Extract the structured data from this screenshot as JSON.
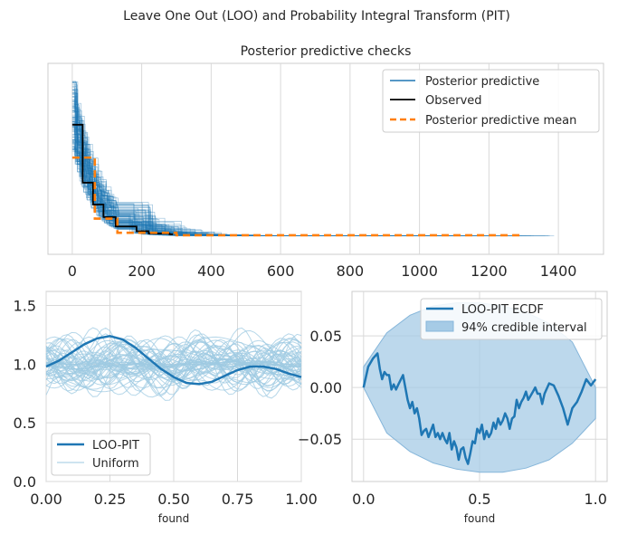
{
  "suptitle": "Leave One Out (LOO) and Probability Integral Transform (PIT)",
  "colors": {
    "blue": "#1f77b4",
    "orange": "#ff7f0e",
    "light_blue": "#9ecae1",
    "band": "#a6cbe6",
    "grid": "#d9d9d9"
  },
  "chart_data": [
    {
      "type": "line",
      "title": "Posterior predictive checks",
      "xlabel": "",
      "ylabel": "",
      "xlim": [
        -70,
        1530
      ],
      "xticks": [
        0,
        200,
        400,
        600,
        800,
        1000,
        1200,
        1400
      ],
      "xtick_labels": [
        "0",
        "200",
        "400",
        "600",
        "800",
        "1000",
        "1200",
        "1400"
      ],
      "legend": [
        "Posterior predictive",
        "Observed",
        "Posterior predictive mean"
      ],
      "legend_loc": "upper-right",
      "series": [
        {
          "name": "Observed",
          "type": "step",
          "x": [
            0,
            30,
            60,
            90,
            125,
            185,
            220,
            280
          ],
          "y": [
            0.77,
            0.4,
            0.26,
            0.18,
            0.12,
            0.09,
            0.075,
            0.07
          ]
        },
        {
          "name": "Posterior predictive mean",
          "type": "step",
          "x": [
            0,
            65,
            130,
            300,
            1300
          ],
          "y": [
            0.56,
            0.17,
            0.08,
            0.064,
            0.064
          ]
        }
      ]
    },
    {
      "type": "line",
      "title": "",
      "xlabel": "found",
      "ylabel": "",
      "xlim": [
        0,
        1
      ],
      "ylim": [
        0,
        1.62
      ],
      "xticks": [
        0,
        0.25,
        0.5,
        0.75,
        1.0
      ],
      "xtick_labels": [
        "0.00",
        "0.25",
        "0.50",
        "0.75",
        "1.00"
      ],
      "yticks": [
        0,
        0.5,
        1.0,
        1.5
      ],
      "ytick_labels": [
        "0.0",
        "0.5",
        "1.0",
        "1.5"
      ],
      "legend": [
        "LOO-PIT",
        "Uniform"
      ],
      "legend_loc": "lower-left",
      "series": [
        {
          "name": "LOO-PIT",
          "x": [
            0,
            0.05,
            0.1,
            0.15,
            0.2,
            0.25,
            0.3,
            0.35,
            0.4,
            0.45,
            0.5,
            0.55,
            0.6,
            0.65,
            0.7,
            0.75,
            0.8,
            0.85,
            0.9,
            0.95,
            1.0
          ],
          "y": [
            0.98,
            1.03,
            1.1,
            1.17,
            1.22,
            1.24,
            1.21,
            1.14,
            1.05,
            0.96,
            0.89,
            0.84,
            0.83,
            0.85,
            0.9,
            0.95,
            0.98,
            0.98,
            0.96,
            0.92,
            0.89
          ]
        }
      ]
    },
    {
      "type": "line",
      "title": "",
      "xlabel": "found",
      "ylabel": "",
      "xlim": [
        -0.05,
        1.05
      ],
      "ylim": [
        -0.091,
        0.093
      ],
      "xticks": [
        0,
        0.5,
        1.0
      ],
      "xtick_labels": [
        "0.0",
        "0.5",
        "1.0"
      ],
      "yticks": [
        -0.05,
        0,
        0.05
      ],
      "ytick_labels": [
        "−0.05",
        "0.00",
        "0.05"
      ],
      "legend": [
        "LOO-PIT ECDF",
        "94% credible interval"
      ],
      "legend_loc": "upper-right",
      "series": [
        {
          "name": "LOO-PIT ECDF",
          "x": [
            0,
            0.02,
            0.04,
            0.06,
            0.07,
            0.08,
            0.09,
            0.1,
            0.11,
            0.12,
            0.13,
            0.14,
            0.15,
            0.17,
            0.19,
            0.2,
            0.21,
            0.22,
            0.23,
            0.24,
            0.25,
            0.26,
            0.27,
            0.28,
            0.3,
            0.31,
            0.32,
            0.33,
            0.34,
            0.35,
            0.36,
            0.37,
            0.38,
            0.39,
            0.4,
            0.41,
            0.42,
            0.43,
            0.44,
            0.45,
            0.46,
            0.47,
            0.48,
            0.49,
            0.5,
            0.51,
            0.52,
            0.53,
            0.54,
            0.55,
            0.56,
            0.57,
            0.58,
            0.59,
            0.6,
            0.61,
            0.62,
            0.63,
            0.64,
            0.65,
            0.66,
            0.67,
            0.68,
            0.69,
            0.7,
            0.71,
            0.72,
            0.73,
            0.74,
            0.75,
            0.76,
            0.77,
            0.78,
            0.8,
            0.82,
            0.84,
            0.86,
            0.88,
            0.9,
            0.92,
            0.94,
            0.96,
            0.98,
            1.0
          ],
          "y": [
            0.0,
            0.02,
            0.028,
            0.033,
            0.018,
            0.008,
            0.015,
            0.012,
            0.012,
            -0.002,
            0.003,
            -0.002,
            0.003,
            0.012,
            -0.012,
            -0.02,
            -0.014,
            -0.025,
            -0.02,
            -0.03,
            -0.046,
            -0.042,
            -0.04,
            -0.048,
            -0.036,
            -0.048,
            -0.044,
            -0.05,
            -0.044,
            -0.05,
            -0.054,
            -0.044,
            -0.06,
            -0.052,
            -0.058,
            -0.07,
            -0.06,
            -0.058,
            -0.068,
            -0.074,
            -0.064,
            -0.052,
            -0.054,
            -0.04,
            -0.044,
            -0.036,
            -0.05,
            -0.042,
            -0.048,
            -0.044,
            -0.034,
            -0.04,
            -0.03,
            -0.036,
            -0.032,
            -0.025,
            -0.03,
            -0.04,
            -0.03,
            -0.028,
            -0.012,
            -0.02,
            -0.014,
            -0.01,
            -0.004,
            -0.012,
            -0.008,
            -0.004,
            0.0,
            -0.006,
            -0.006,
            -0.016,
            -0.006,
            0.004,
            0.002,
            -0.008,
            -0.02,
            -0.036,
            -0.02,
            -0.014,
            -0.004,
            0.008,
            0.002,
            0.008
          ]
        },
        {
          "name": "94% credible interval",
          "type": "band",
          "x": [
            0,
            0.1,
            0.2,
            0.3,
            0.4,
            0.5,
            0.6,
            0.7,
            0.8,
            0.9,
            1.0
          ],
          "lower": [
            0.0,
            -0.044,
            -0.062,
            -0.073,
            -0.079,
            -0.082,
            -0.082,
            -0.078,
            -0.07,
            -0.054,
            -0.03
          ],
          "upper": [
            0.02,
            0.053,
            0.07,
            0.079,
            0.082,
            0.082,
            0.079,
            0.073,
            0.062,
            0.044,
            0.0
          ]
        }
      ]
    }
  ]
}
